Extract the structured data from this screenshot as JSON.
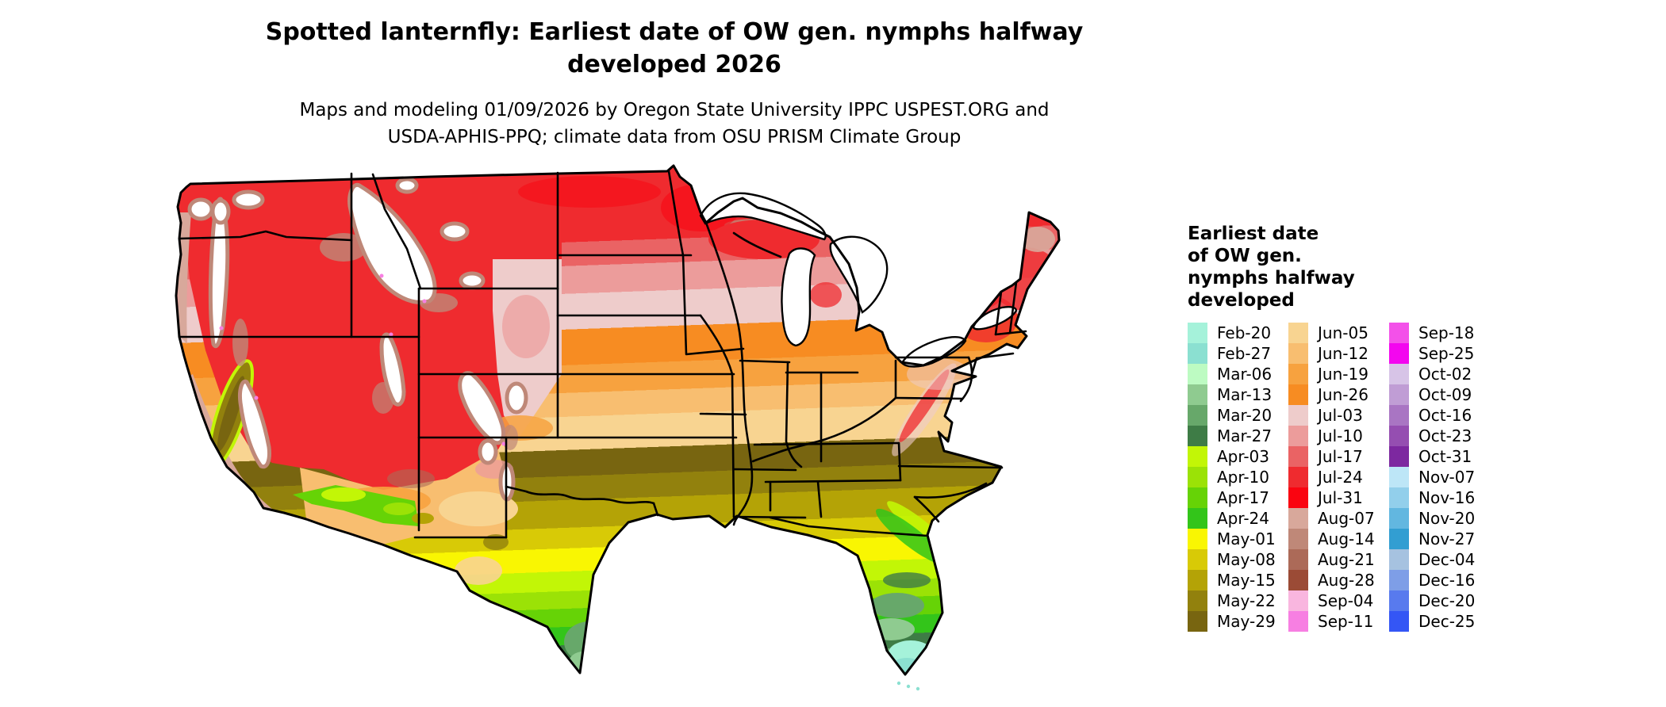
{
  "header": {
    "title_lines": [
      "Spotted lanternfly: Earliest date of OW gen. nymphs halfway",
      "developed 2026"
    ],
    "subtitle_lines": [
      "Maps and modeling 01/09/2026 by Oregon State University IPPC USPEST.ORG and",
      "USDA-APHIS-PPQ; climate data from OSU PRISM Climate Group"
    ]
  },
  "legend": {
    "title_lines": [
      "Earliest date",
      "of OW gen.",
      "nymphs halfway",
      "developed"
    ],
    "columns": [
      {
        "items": [
          {
            "label": "Feb-20",
            "color": "#A5F2DA"
          },
          {
            "label": "Feb-27",
            "color": "#8BE0D1"
          },
          {
            "label": "Mar-06",
            "color": "#BDFBC2"
          },
          {
            "label": "Mar-13",
            "color": "#8FCB90"
          },
          {
            "label": "Mar-20",
            "color": "#67A86A"
          },
          {
            "label": "Mar-27",
            "color": "#3E7C46"
          },
          {
            "label": "Apr-03",
            "color": "#C2F606"
          },
          {
            "label": "Apr-10",
            "color": "#9BE206"
          },
          {
            "label": "Apr-17",
            "color": "#66D306"
          },
          {
            "label": "Apr-24",
            "color": "#33C51A"
          },
          {
            "label": "May-01",
            "color": "#F9F602"
          },
          {
            "label": "May-08",
            "color": "#D8CA06"
          },
          {
            "label": "May-15",
            "color": "#B4A306"
          },
          {
            "label": "May-22",
            "color": "#92810D"
          },
          {
            "label": "May-29",
            "color": "#786510"
          }
        ]
      },
      {
        "items": [
          {
            "label": "Jun-05",
            "color": "#F8D491"
          },
          {
            "label": "Jun-12",
            "color": "#F8BE70"
          },
          {
            "label": "Jun-19",
            "color": "#F7A23F"
          },
          {
            "label": "Jun-26",
            "color": "#F78C22"
          },
          {
            "label": "Jul-03",
            "color": "#EECCCB"
          },
          {
            "label": "Jul-10",
            "color": "#EC9C9B"
          },
          {
            "label": "Jul-17",
            "color": "#EA6364"
          },
          {
            "label": "Jul-24",
            "color": "#EF2B2F"
          },
          {
            "label": "Jul-31",
            "color": "#FA0410"
          },
          {
            "label": "Aug-07",
            "color": "#D8A89B"
          },
          {
            "label": "Aug-14",
            "color": "#BF8878"
          },
          {
            "label": "Aug-21",
            "color": "#AC6A58"
          },
          {
            "label": "Aug-28",
            "color": "#9B4B36"
          },
          {
            "label": "Sep-04",
            "color": "#F9B6DF"
          },
          {
            "label": "Sep-11",
            "color": "#F77FE2"
          }
        ]
      },
      {
        "items": [
          {
            "label": "Sep-18",
            "color": "#F351E9"
          },
          {
            "label": "Sep-25",
            "color": "#F306EF"
          },
          {
            "label": "Oct-02",
            "color": "#D7C4E7"
          },
          {
            "label": "Oct-09",
            "color": "#C09DD5"
          },
          {
            "label": "Oct-16",
            "color": "#A975C3"
          },
          {
            "label": "Oct-23",
            "color": "#954EB1"
          },
          {
            "label": "Oct-31",
            "color": "#7D28A0"
          },
          {
            "label": "Nov-07",
            "color": "#BDE6F7"
          },
          {
            "label": "Nov-16",
            "color": "#92CFEB"
          },
          {
            "label": "Nov-20",
            "color": "#62B7E0"
          },
          {
            "label": "Nov-27",
            "color": "#329ED2"
          },
          {
            "label": "Dec-04",
            "color": "#A6C2E0"
          },
          {
            "label": "Dec-16",
            "color": "#7E9EE7"
          },
          {
            "label": "Dec-20",
            "color": "#587AEE"
          },
          {
            "label": "Dec-25",
            "color": "#3456F5"
          }
        ]
      }
    ]
  }
}
